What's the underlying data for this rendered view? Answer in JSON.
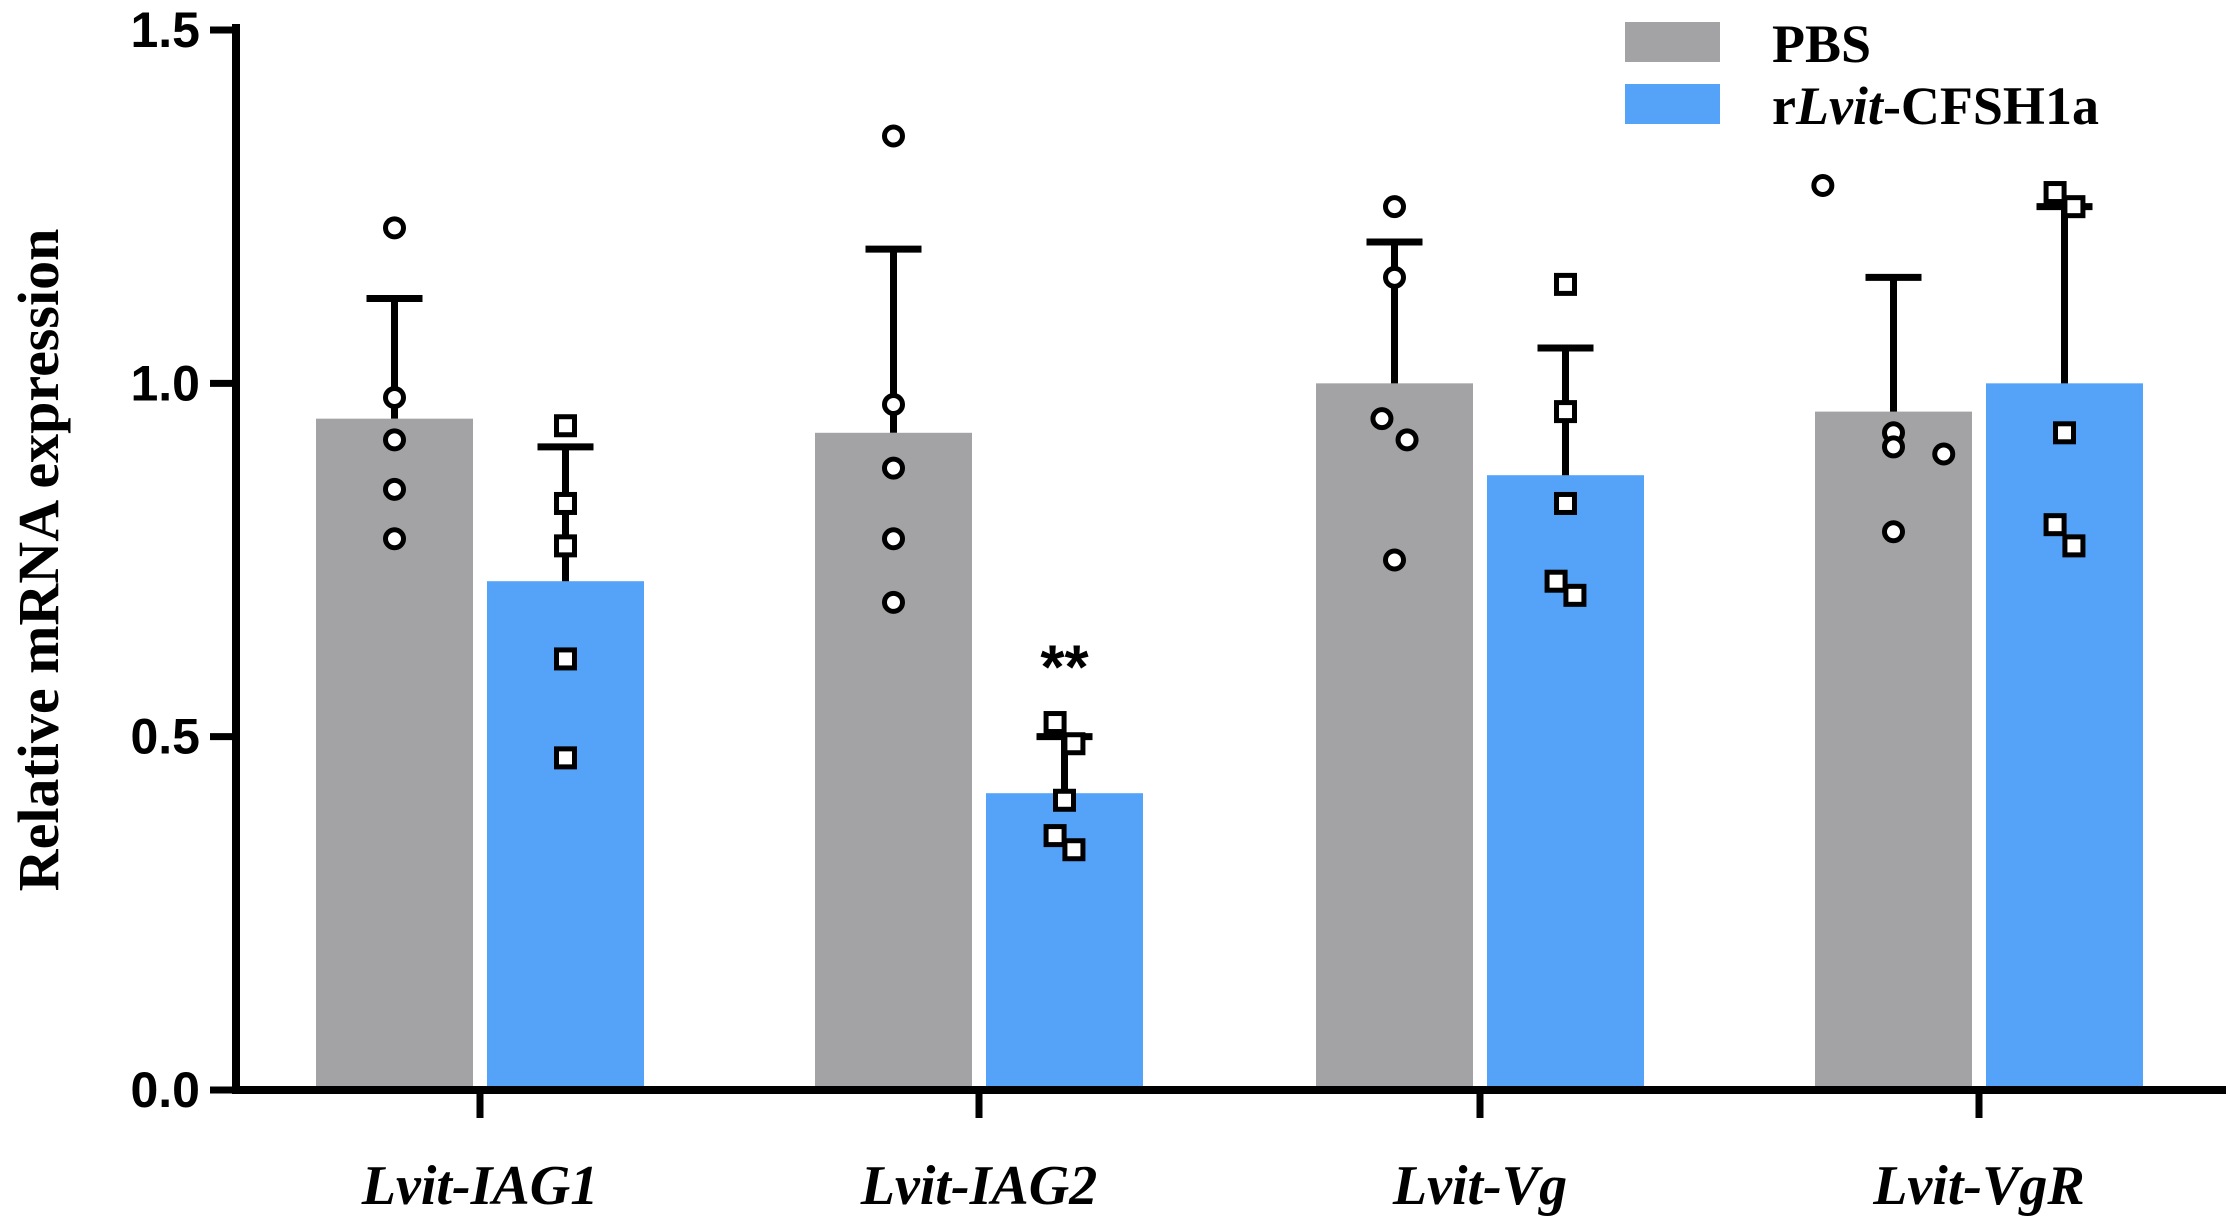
{
  "chart_data": {
    "type": "bar",
    "title": "",
    "xlabel": "",
    "ylabel": "Relative mRNA expression",
    "ylim": [
      0,
      1.5
    ],
    "yticks": [
      {
        "value": 0.0,
        "label": "0.0"
      },
      {
        "value": 0.5,
        "label": "0.5"
      },
      {
        "value": 1.0,
        "label": "1.0"
      },
      {
        "value": 1.5,
        "label": "1.5"
      }
    ],
    "categories": [
      {
        "prefix": "Lvit",
        "sep": "-",
        "gene": "IAG1"
      },
      {
        "prefix": "Lvit",
        "sep": "-",
        "gene": "IAG2"
      },
      {
        "prefix": "Lvit",
        "sep": "-",
        "gene": "Vg"
      },
      {
        "prefix": "Lvit",
        "sep": "-",
        "gene": "VgR"
      }
    ],
    "legend": {
      "position": "top-right",
      "entries": [
        {
          "parts": [
            {
              "text": "PBS",
              "italic": false
            }
          ]
        },
        {
          "parts": [
            {
              "text": "r",
              "italic": false
            },
            {
              "text": "Lvit",
              "italic": true
            },
            {
              "text": "-CFSH1a",
              "italic": false
            }
          ]
        }
      ]
    },
    "series": [
      {
        "name": "PBS",
        "color": "#a3a3a6",
        "marker": "circle",
        "values": [
          0.95,
          0.93,
          1.0,
          0.96
        ],
        "error_upper": [
          1.12,
          1.19,
          1.2,
          1.15
        ],
        "points": [
          [
            1.22,
            0.98,
            0.92,
            0.85,
            0.78
          ],
          [
            1.35,
            0.97,
            0.88,
            0.78,
            0.69
          ],
          [
            1.25,
            1.15,
            0.95,
            0.92,
            0.75
          ],
          [
            1.28,
            0.93,
            0.91,
            0.9,
            0.79
          ]
        ],
        "point_offsets": [
          [
            0,
            0,
            0,
            0,
            0
          ],
          [
            0,
            0,
            0,
            0,
            0
          ],
          [
            0,
            0,
            -0.08,
            0.08,
            0
          ],
          [
            -0.45,
            0,
            0,
            0.32,
            0
          ]
        ]
      },
      {
        "name": "rLvit-CFSH1a",
        "color": "#54a3f8",
        "marker": "square",
        "values": [
          0.72,
          0.42,
          0.87,
          1.0
        ],
        "error_upper": [
          0.91,
          0.5,
          1.05,
          1.25
        ],
        "points": [
          [
            0.94,
            0.83,
            0.77,
            0.61,
            0.47
          ],
          [
            0.52,
            0.49,
            0.41,
            0.36,
            0.34
          ],
          [
            1.14,
            0.96,
            0.83,
            0.72,
            0.7
          ],
          [
            1.27,
            1.25,
            0.93,
            0.8,
            0.77
          ]
        ],
        "point_offsets": [
          [
            0,
            0,
            0,
            0,
            0
          ],
          [
            -0.06,
            0.06,
            0,
            -0.06,
            0.06
          ],
          [
            0,
            0,
            0,
            -0.06,
            0.06
          ],
          [
            -0.06,
            0.06,
            0,
            -0.06,
            0.06
          ]
        ]
      }
    ],
    "annotations": [
      {
        "series": 1,
        "category": 1,
        "text": "**"
      }
    ]
  }
}
